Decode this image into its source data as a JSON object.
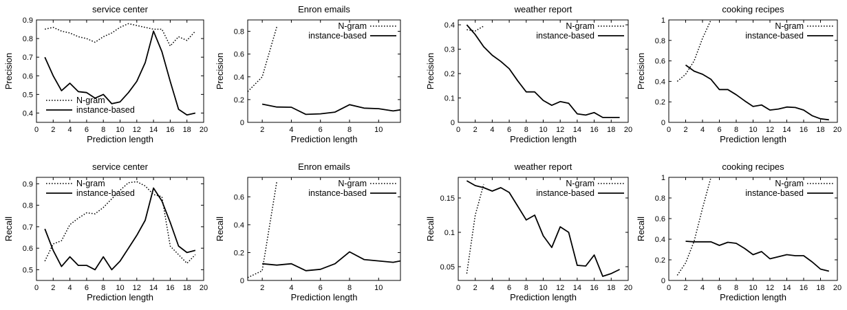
{
  "chart_data": [
    {
      "type": "line",
      "title": "service center",
      "xlabel": "Prediction length",
      "ylabel": "Precision",
      "xlim": [
        0,
        20
      ],
      "ylim": [
        0.35,
        0.9
      ],
      "xticks": [
        0,
        2,
        4,
        6,
        8,
        10,
        12,
        14,
        16,
        18,
        20
      ],
      "yticks": [
        0.4,
        0.5,
        0.6,
        0.7,
        0.8,
        0.9
      ],
      "legend_position": "bottom-left",
      "series": [
        {
          "name": "N-gram",
          "style": "dotted",
          "x": [
            1,
            2,
            3,
            4,
            5,
            6,
            7,
            8,
            9,
            10,
            11,
            12,
            13,
            14,
            15,
            16,
            17,
            18,
            19
          ],
          "y": [
            0.85,
            0.86,
            0.84,
            0.83,
            0.81,
            0.8,
            0.78,
            0.81,
            0.83,
            0.86,
            0.88,
            0.87,
            0.86,
            0.85,
            0.85,
            0.76,
            0.81,
            0.79,
            0.84
          ]
        },
        {
          "name": "instance-based",
          "style": "solid",
          "x": [
            1,
            2,
            3,
            4,
            5,
            6,
            7,
            8,
            9,
            10,
            11,
            12,
            13,
            14,
            15,
            16,
            17,
            18,
            19
          ],
          "y": [
            0.7,
            0.6,
            0.52,
            0.56,
            0.515,
            0.51,
            0.48,
            0.5,
            0.45,
            0.46,
            0.51,
            0.57,
            0.67,
            0.84,
            0.73,
            0.57,
            0.42,
            0.39,
            0.4
          ]
        }
      ]
    },
    {
      "type": "line",
      "title": "Enron emails",
      "xlabel": "Prediction length",
      "ylabel": "Precision",
      "xlim": [
        1,
        11.5
      ],
      "ylim": [
        0,
        0.9
      ],
      "xticks": [
        2,
        4,
        6,
        8,
        10
      ],
      "yticks": [
        0,
        0.2,
        0.4,
        0.6,
        0.8
      ],
      "legend_position": "top-right",
      "series": [
        {
          "name": "N-gram",
          "style": "dotted",
          "x": [
            1,
            2,
            3
          ],
          "y": [
            0.27,
            0.4,
            0.84
          ]
        },
        {
          "name": "instance-based",
          "style": "solid",
          "x": [
            2,
            3,
            4,
            5,
            6,
            7,
            8,
            9,
            10,
            11,
            11.5
          ],
          "y": [
            0.16,
            0.135,
            0.133,
            0.07,
            0.075,
            0.09,
            0.155,
            0.125,
            0.12,
            0.1,
            0.11
          ]
        }
      ]
    },
    {
      "type": "line",
      "title": "weather report",
      "xlabel": "Prediction length",
      "ylabel": "Precision",
      "xlim": [
        0,
        20
      ],
      "ylim": [
        0,
        0.42
      ],
      "xticks": [
        0,
        2,
        4,
        6,
        8,
        10,
        12,
        14,
        16,
        18,
        20
      ],
      "yticks": [
        0,
        0.1,
        0.2,
        0.3,
        0.4
      ],
      "legend_position": "top-right",
      "series": [
        {
          "name": "N-gram",
          "style": "dotted",
          "x": [
            1,
            2,
            3
          ],
          "y": [
            0.38,
            0.375,
            0.395
          ]
        },
        {
          "name": "instance-based",
          "style": "solid",
          "x": [
            1,
            2,
            3,
            4,
            5,
            6,
            7,
            8,
            9,
            10,
            11,
            12,
            13,
            14,
            15,
            16,
            17,
            18,
            19
          ],
          "y": [
            0.4,
            0.36,
            0.31,
            0.275,
            0.25,
            0.22,
            0.17,
            0.125,
            0.125,
            0.09,
            0.07,
            0.085,
            0.078,
            0.035,
            0.03,
            0.04,
            0.02,
            0.02,
            0.02
          ]
        }
      ]
    },
    {
      "type": "line",
      "title": "cooking recipes",
      "xlabel": "Prediction length",
      "ylabel": "Precision",
      "xlim": [
        0,
        20
      ],
      "ylim": [
        0,
        1
      ],
      "xticks": [
        0,
        2,
        4,
        6,
        8,
        10,
        12,
        14,
        16,
        18,
        20
      ],
      "yticks": [
        0,
        0.2,
        0.4,
        0.6,
        0.8,
        1
      ],
      "legend_position": "top-right",
      "series": [
        {
          "name": "N-gram",
          "style": "dotted",
          "x": [
            1,
            2,
            3,
            4,
            5
          ],
          "y": [
            0.4,
            0.47,
            0.6,
            0.82,
            1.0
          ]
        },
        {
          "name": "instance-based",
          "style": "solid",
          "x": [
            2,
            3,
            4,
            5,
            6,
            7,
            8,
            9,
            10,
            11,
            12,
            13,
            14,
            15,
            16,
            17,
            18,
            19
          ],
          "y": [
            0.56,
            0.5,
            0.47,
            0.42,
            0.32,
            0.32,
            0.27,
            0.21,
            0.155,
            0.17,
            0.12,
            0.13,
            0.15,
            0.145,
            0.12,
            0.065,
            0.035,
            0.025
          ]
        }
      ]
    },
    {
      "type": "line",
      "title": "service center",
      "xlabel": "Prediction length",
      "ylabel": "Recall",
      "xlim": [
        0,
        20
      ],
      "ylim": [
        0.45,
        0.93
      ],
      "xticks": [
        0,
        2,
        4,
        6,
        8,
        10,
        12,
        14,
        16,
        18,
        20
      ],
      "yticks": [
        0.5,
        0.6,
        0.7,
        0.8,
        0.9
      ],
      "legend_position": "top-left",
      "series": [
        {
          "name": "N-gram",
          "style": "dotted",
          "x": [
            1,
            2,
            3,
            4,
            5,
            6,
            7,
            8,
            9,
            10,
            11,
            12,
            13,
            14,
            15,
            16,
            17,
            18,
            19
          ],
          "y": [
            0.54,
            0.62,
            0.635,
            0.71,
            0.74,
            0.765,
            0.76,
            0.79,
            0.83,
            0.87,
            0.905,
            0.91,
            0.89,
            0.85,
            0.84,
            0.61,
            0.57,
            0.53,
            0.57
          ]
        },
        {
          "name": "instance-based",
          "style": "solid",
          "x": [
            1,
            2,
            3,
            4,
            5,
            6,
            7,
            8,
            9,
            10,
            11,
            12,
            13,
            14,
            15,
            16,
            17,
            18,
            19
          ],
          "y": [
            0.69,
            0.59,
            0.515,
            0.56,
            0.52,
            0.52,
            0.5,
            0.56,
            0.5,
            0.54,
            0.6,
            0.66,
            0.73,
            0.88,
            0.82,
            0.72,
            0.61,
            0.58,
            0.59
          ]
        }
      ]
    },
    {
      "type": "line",
      "title": "Enron emails",
      "xlabel": "Prediction length",
      "ylabel": "Recall",
      "xlim": [
        1,
        11.5
      ],
      "ylim": [
        0,
        0.74
      ],
      "xticks": [
        2,
        4,
        6,
        8,
        10
      ],
      "yticks": [
        0,
        0.2,
        0.4,
        0.6
      ],
      "legend_position": "top-right",
      "series": [
        {
          "name": "N-gram",
          "style": "dotted",
          "x": [
            1,
            2,
            3
          ],
          "y": [
            0.02,
            0.07,
            0.71
          ]
        },
        {
          "name": "instance-based",
          "style": "solid",
          "x": [
            2,
            3,
            4,
            5,
            6,
            7,
            8,
            9,
            10,
            11,
            11.5
          ],
          "y": [
            0.12,
            0.11,
            0.12,
            0.07,
            0.08,
            0.12,
            0.205,
            0.15,
            0.14,
            0.13,
            0.14
          ]
        }
      ]
    },
    {
      "type": "line",
      "title": "weather report",
      "xlabel": "Prediction length",
      "ylabel": "Recall",
      "xlim": [
        0,
        20
      ],
      "ylim": [
        0.03,
        0.18
      ],
      "xticks": [
        0,
        2,
        4,
        6,
        8,
        10,
        12,
        14,
        16,
        18,
        20
      ],
      "yticks": [
        0.05,
        0.1,
        0.15
      ],
      "legend_position": "top-right",
      "series": [
        {
          "name": "N-gram",
          "style": "dotted",
          "x": [
            1,
            2,
            3
          ],
          "y": [
            0.04,
            0.125,
            0.17
          ]
        },
        {
          "name": "instance-based",
          "style": "solid",
          "x": [
            1,
            2,
            3,
            4,
            5,
            6,
            7,
            8,
            9,
            10,
            11,
            12,
            13,
            14,
            15,
            16,
            17,
            18,
            19
          ],
          "y": [
            0.175,
            0.168,
            0.165,
            0.16,
            0.165,
            0.158,
            0.138,
            0.118,
            0.125,
            0.095,
            0.078,
            0.108,
            0.1,
            0.052,
            0.051,
            0.067,
            0.036,
            0.04,
            0.046
          ]
        }
      ]
    },
    {
      "type": "line",
      "title": "cooking recipes",
      "xlabel": "Prediction length",
      "ylabel": "Recall",
      "xlim": [
        0,
        20
      ],
      "ylim": [
        0,
        1
      ],
      "xticks": [
        0,
        2,
        4,
        6,
        8,
        10,
        12,
        14,
        16,
        18,
        20
      ],
      "yticks": [
        0,
        0.2,
        0.4,
        0.6,
        0.8,
        1
      ],
      "legend_position": "top-right",
      "series": [
        {
          "name": "N-gram",
          "style": "dotted",
          "x": [
            1,
            2,
            3,
            4,
            5
          ],
          "y": [
            0.05,
            0.17,
            0.38,
            0.7,
            1.0
          ]
        },
        {
          "name": "instance-based",
          "style": "solid",
          "x": [
            2,
            3,
            4,
            5,
            6,
            7,
            8,
            9,
            10,
            11,
            12,
            13,
            14,
            15,
            16,
            17,
            18,
            19
          ],
          "y": [
            0.38,
            0.375,
            0.375,
            0.375,
            0.34,
            0.37,
            0.36,
            0.31,
            0.25,
            0.28,
            0.21,
            0.23,
            0.25,
            0.24,
            0.24,
            0.18,
            0.11,
            0.09
          ]
        }
      ]
    }
  ]
}
